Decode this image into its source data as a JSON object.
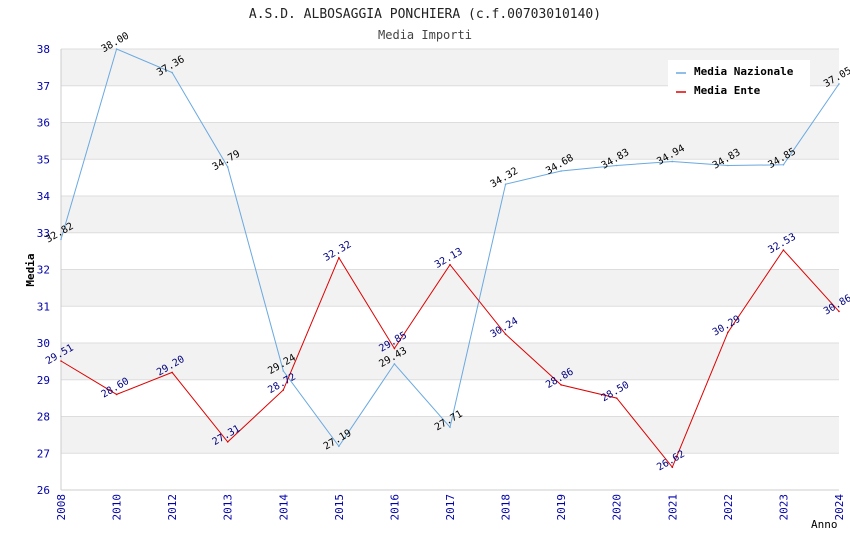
{
  "chart_data": {
    "type": "line",
    "title": "A.S.D. ALBOSAGGIA PONCHIERA (c.f.00703010140)",
    "subtitle": "Media Importi",
    "xlabel": "Anno",
    "ylabel": "Media",
    "ylim": [
      26,
      38
    ],
    "yticks": [
      "26",
      "27",
      "28",
      "29",
      "30",
      "31",
      "32",
      "33",
      "34",
      "35",
      "36",
      "37",
      "38"
    ],
    "categories": [
      "2008",
      "2010",
      "2012",
      "2013",
      "2014",
      "2015",
      "2016",
      "2017",
      "2018",
      "2019",
      "2020",
      "2021",
      "2022",
      "2023",
      "2024"
    ],
    "series": [
      {
        "name": "Media Nazionale",
        "color": "#6aa9e0",
        "label_color": "#000000",
        "values": [
          32.82,
          38.0,
          37.36,
          34.79,
          29.24,
          27.19,
          29.43,
          27.71,
          34.32,
          34.68,
          34.83,
          34.94,
          34.83,
          34.85,
          37.05
        ],
        "labels": [
          "32.82",
          "38.00",
          "37.36",
          "34.79",
          "29.24",
          "27.19",
          "29.43",
          "27.71",
          "34.32",
          "34.68",
          "34.83",
          "34.94",
          "34.83",
          "34.85",
          "37.05"
        ]
      },
      {
        "name": "Media Ente",
        "color": "#dd0000",
        "label_color": "#000080",
        "values": [
          29.51,
          28.6,
          29.2,
          27.31,
          28.72,
          32.32,
          29.85,
          32.13,
          30.24,
          28.86,
          28.5,
          26.62,
          30.29,
          32.53,
          30.86
        ],
        "labels": [
          "29.51",
          "28.60",
          "29.20",
          "27.31",
          "28.72",
          "32.32",
          "29.85",
          "32.13",
          "30.24",
          "28.86",
          "28.50",
          "26.62",
          "30.29",
          "32.53",
          "30.86"
        ]
      }
    ],
    "legend_position": "top-right",
    "grid": true
  }
}
